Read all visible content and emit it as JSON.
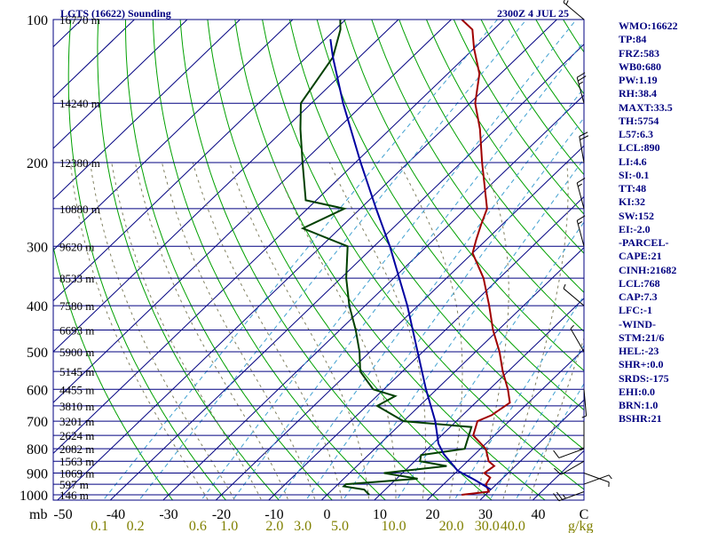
{
  "chart_data": {
    "type": "skew-t log-p sounding",
    "title": "LGTS (16622) Sounding",
    "valid_time": "2300Z  4 JUL 25",
    "pressure_unit": "mb",
    "temperature_ticks": [
      -50,
      -40,
      -30,
      -20,
      -10,
      0,
      10,
      20,
      30,
      40
    ],
    "temperature_tick_labels": [
      "-50",
      "-40",
      "-30",
      "-20",
      "-10",
      "0",
      "10",
      "20",
      "30",
      "40",
      "C"
    ],
    "pressure_ticks": [
      100,
      200,
      300,
      400,
      500,
      600,
      700,
      800,
      900,
      1000
    ],
    "mixing_ratio_unit": "g/kg",
    "mixing_ratio_labels": [
      "0.1",
      "0.2",
      "0.6",
      "1.0",
      "2.0",
      "3.0",
      "5.0",
      "10.0",
      "20.0",
      "30.0",
      "40.0"
    ],
    "height_labels": [
      {
        "p": 100,
        "label": "16770 m"
      },
      {
        "p": 150,
        "label": "14240 m"
      },
      {
        "p": 200,
        "label": "12380 m"
      },
      {
        "p": 250,
        "label": "10880 m"
      },
      {
        "p": 300,
        "label": "9620 m"
      },
      {
        "p": 350,
        "label": "8533 m"
      },
      {
        "p": 400,
        "label": "7580 m"
      },
      {
        "p": 450,
        "label": "6693 m"
      },
      {
        "p": 500,
        "label": "5900 m"
      },
      {
        "p": 550,
        "label": "5145 m"
      },
      {
        "p": 600,
        "label": "4455 m"
      },
      {
        "p": 650,
        "label": "3810 m"
      },
      {
        "p": 700,
        "label": "3201 m"
      },
      {
        "p": 750,
        "label": "2624 m"
      },
      {
        "p": 800,
        "label": "2082 m"
      },
      {
        "p": 850,
        "label": "1563 m"
      },
      {
        "p": 900,
        "label": "1069 m"
      },
      {
        "p": 950,
        "label": "597 m"
      },
      {
        "p": 1000,
        "label": "146 m"
      }
    ],
    "series": [
      {
        "name": "Temperature",
        "color": "#a00000",
        "points": [
          {
            "p": 1000,
            "t": 25.5
          },
          {
            "p": 985,
            "t": 30
          },
          {
            "p": 950,
            "t": 28
          },
          {
            "p": 920,
            "t": 27.5
          },
          {
            "p": 900,
            "t": 25.5
          },
          {
            "p": 870,
            "t": 26
          },
          {
            "p": 850,
            "t": 24
          },
          {
            "p": 800,
            "t": 21
          },
          {
            "p": 750,
            "t": 16
          },
          {
            "p": 700,
            "t": 14
          },
          {
            "p": 680,
            "t": 15.5
          },
          {
            "p": 640,
            "t": 16.5
          },
          {
            "p": 600,
            "t": 13.5
          },
          {
            "p": 550,
            "t": 9
          },
          {
            "p": 500,
            "t": 4.5
          },
          {
            "p": 450,
            "t": -1
          },
          {
            "p": 400,
            "t": -6.5
          },
          {
            "p": 350,
            "t": -13
          },
          {
            "p": 310,
            "t": -20
          },
          {
            "p": 290,
            "t": -22
          },
          {
            "p": 270,
            "t": -24
          },
          {
            "p": 250,
            "t": -26
          },
          {
            "p": 200,
            "t": -36
          },
          {
            "p": 170,
            "t": -43
          },
          {
            "p": 150,
            "t": -49
          },
          {
            "p": 130,
            "t": -54
          },
          {
            "p": 115,
            "t": -60
          },
          {
            "p": 105,
            "t": -64
          },
          {
            "p": 100,
            "t": -68
          }
        ]
      },
      {
        "name": "Dewpoint",
        "color": "#004000",
        "points": [
          {
            "p": 1000,
            "t": 8
          },
          {
            "p": 975,
            "t": 6
          },
          {
            "p": 960,
            "t": 1.5
          },
          {
            "p": 950,
            "t": 1.5
          },
          {
            "p": 925,
            "t": 14
          },
          {
            "p": 900,
            "t": 6.5
          },
          {
            "p": 870,
            "t": 17
          },
          {
            "p": 850,
            "t": 11
          },
          {
            "p": 825,
            "t": 10
          },
          {
            "p": 800,
            "t": 17
          },
          {
            "p": 720,
            "t": 14
          },
          {
            "p": 700,
            "t": 0
          },
          {
            "p": 650,
            "t": -8
          },
          {
            "p": 620,
            "t": -6.5
          },
          {
            "p": 600,
            "t": -12
          },
          {
            "p": 550,
            "t": -18
          },
          {
            "p": 500,
            "t": -22
          },
          {
            "p": 450,
            "t": -27
          },
          {
            "p": 400,
            "t": -33
          },
          {
            "p": 350,
            "t": -39
          },
          {
            "p": 300,
            "t": -45
          },
          {
            "p": 275,
            "t": -57
          },
          {
            "p": 250,
            "t": -53
          },
          {
            "p": 240,
            "t": -62
          },
          {
            "p": 200,
            "t": -70
          },
          {
            "p": 170,
            "t": -77
          },
          {
            "p": 150,
            "t": -82
          },
          {
            "p": 120,
            "t": -85
          },
          {
            "p": 105,
            "t": -89
          },
          {
            "p": 100,
            "t": -91
          }
        ]
      },
      {
        "name": "Parcel",
        "color": "#0000a0",
        "points": [
          {
            "p": 975,
            "t": 30
          },
          {
            "p": 930,
            "t": 25
          },
          {
            "p": 890,
            "t": 20
          },
          {
            "p": 820,
            "t": 14
          },
          {
            "p": 780,
            "t": 11
          },
          {
            "p": 700,
            "t": 6
          },
          {
            "p": 600,
            "t": -2
          },
          {
            "p": 500,
            "t": -11
          },
          {
            "p": 400,
            "t": -22
          },
          {
            "p": 300,
            "t": -37
          },
          {
            "p": 250,
            "t": -47
          },
          {
            "p": 200,
            "t": -59
          },
          {
            "p": 150,
            "t": -74
          },
          {
            "p": 120,
            "t": -85
          },
          {
            "p": 110,
            "t": -89
          }
        ]
      }
    ],
    "wind_barbs": [
      {
        "p": 985,
        "dir": 250,
        "kt": 25
      },
      {
        "p": 950,
        "dir": 70,
        "kt": 5
      },
      {
        "p": 900,
        "dir": 110,
        "kt": 5
      },
      {
        "p": 850,
        "dir": 240,
        "kt": 10
      },
      {
        "p": 800,
        "dir": 250,
        "kt": 10
      },
      {
        "p": 700,
        "dir": 180,
        "kt": 5
      },
      {
        "p": 600,
        "dir": 175,
        "kt": 5
      },
      {
        "p": 500,
        "dir": 330,
        "kt": 5
      },
      {
        "p": 400,
        "dir": 310,
        "kt": 5
      },
      {
        "p": 300,
        "dir": 345,
        "kt": 15
      },
      {
        "p": 250,
        "dir": 345,
        "kt": 15
      },
      {
        "p": 200,
        "dir": 350,
        "kt": 20
      },
      {
        "p": 150,
        "dir": 345,
        "kt": 25
      },
      {
        "p": 100,
        "dir": 310,
        "kt": 15
      }
    ],
    "colors": {
      "isobar": "#000080",
      "isotherm": "#000080",
      "dry_adiabat": "#00a000",
      "moist_adiabat": "#808060",
      "mixing_ratio": "#40a0d0",
      "axis_labels": "#000000",
      "mixing_labels": "#808000",
      "height_labels": "#000000",
      "panel_text": "#000080"
    }
  },
  "indices": [
    "WMO:16622",
    "TP:84",
    "FRZ:583",
    "WB0:680",
    "PW:1.19",
    "RH:38.4",
    "MAXT:33.5",
    "TH:5754",
    "L57:6.3",
    "LCL:890",
    "LI:4.6",
    "SI:-0.1",
    "TT:48",
    "KI:32",
    "SW:152",
    "EI:-2.0",
    "-PARCEL-",
    "CAPE:21",
    "CINH:21682",
    "LCL:768",
    "CAP:7.3",
    "LFC:-1",
    "-WIND-",
    "STM:21/6",
    "HEL:-23",
    "SHR+:0.0",
    "SRDS:-175",
    "EHI:0.0",
    "BRN:1.0",
    "BSHR:21"
  ]
}
